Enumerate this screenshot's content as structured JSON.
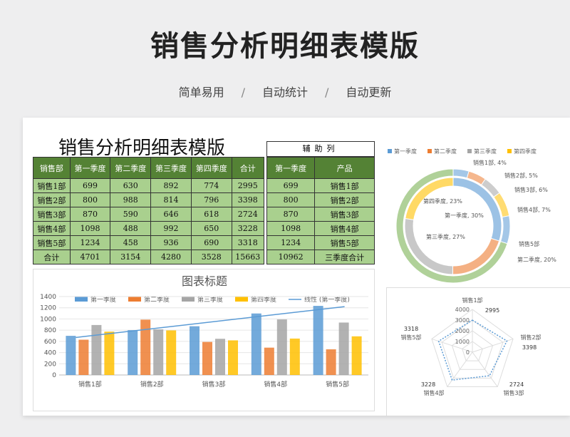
{
  "hero_title": "销售分析明细表模版",
  "subtitle": [
    "简单易用",
    "自动统计",
    "自动更新"
  ],
  "subtitle_sep": "/",
  "sheet_title": "销售分析明细表模版",
  "main_table": {
    "headers": [
      "销售部",
      "第一季度",
      "第二季度",
      "第三季度",
      "第四季度",
      "合计"
    ],
    "rows": [
      [
        "销售1部",
        "699",
        "630",
        "892",
        "774",
        "2995"
      ],
      [
        "销售2部",
        "800",
        "988",
        "814",
        "796",
        "3398"
      ],
      [
        "销售3部",
        "870",
        "590",
        "646",
        "618",
        "2724"
      ],
      [
        "销售4部",
        "1098",
        "488",
        "992",
        "650",
        "3228"
      ],
      [
        "销售5部",
        "1234",
        "458",
        "936",
        "690",
        "3318"
      ],
      [
        "合计",
        "4701",
        "3154",
        "4280",
        "3528",
        "15663"
      ]
    ]
  },
  "aux": {
    "title": "辅助列",
    "headers": [
      "第一季度",
      "产品"
    ],
    "rows": [
      [
        "699",
        "销售1部"
      ],
      [
        "800",
        "销售2部"
      ],
      [
        "870",
        "销售3部"
      ],
      [
        "1098",
        "销售4部"
      ],
      [
        "1234",
        "销售5部"
      ],
      [
        "10962",
        "三季度合计"
      ]
    ]
  },
  "colors": {
    "q1": "#5b9bd5",
    "q2": "#ed7d31",
    "q3": "#a5a5a5",
    "q4": "#ffc000",
    "trend": "#5b9bd5",
    "green_outer": "#70ad47",
    "header_green": "#548235",
    "cell_green": "#a9d08e"
  },
  "chart_data": [
    {
      "type": "bar",
      "title": "图表标题",
      "categories": [
        "销售1部",
        "销售2部",
        "销售3部",
        "销售4部",
        "销售5部"
      ],
      "series": [
        {
          "name": "第一季度",
          "values": [
            699,
            800,
            870,
            1098,
            1234
          ]
        },
        {
          "name": "第二季度",
          "values": [
            630,
            988,
            590,
            488,
            458
          ]
        },
        {
          "name": "第三季度",
          "values": [
            892,
            814,
            646,
            992,
            936
          ]
        },
        {
          "name": "第四季度",
          "values": [
            774,
            796,
            618,
            650,
            690
          ]
        }
      ],
      "trendline": {
        "name": "线性 (第一季度)",
        "start": 670,
        "end": 1220
      },
      "ylim": [
        0,
        1400
      ],
      "yticks": [
        0,
        200,
        400,
        600,
        800,
        1000,
        1200,
        1400
      ],
      "legend": "top"
    },
    {
      "type": "pie",
      "variant": "donut",
      "legend": [
        "第一季度",
        "第二季度",
        "第三季度",
        "第四季度"
      ],
      "inner_ring": {
        "labels": [
          "第一季度",
          "第二季度",
          "第三季度",
          "第四季度"
        ],
        "values": [
          4701,
          3154,
          4280,
          3528
        ],
        "data_labels": [
          "第一季度, 30%",
          "第二季度, 20%",
          "第三季度, 27%",
          "第四季度, 23%"
        ]
      },
      "outer_ring": {
        "labels": [
          "销售1部",
          "销售2部",
          "销售3部",
          "销售4部",
          "销售5部",
          "三季度合计"
        ],
        "values": [
          699,
          800,
          870,
          1098,
          1234,
          10962
        ],
        "data_labels": [
          "销售1部, 4%",
          "销售2部, 5%",
          "销售3部, 6%",
          "销售4部, 7%",
          "销售5部",
          ""
        ]
      }
    },
    {
      "type": "radar",
      "categories": [
        "销售1部",
        "销售2部",
        "销售3部",
        "销售4部",
        "销售5部"
      ],
      "values": [
        2995,
        3398,
        2724,
        3228,
        3318
      ],
      "data_labels": [
        "2995",
        "3398",
        "2724",
        "3228",
        "3318"
      ],
      "rlim": [
        0,
        4000
      ],
      "rticks": [
        0,
        1000,
        2000,
        3000,
        4000
      ]
    }
  ]
}
